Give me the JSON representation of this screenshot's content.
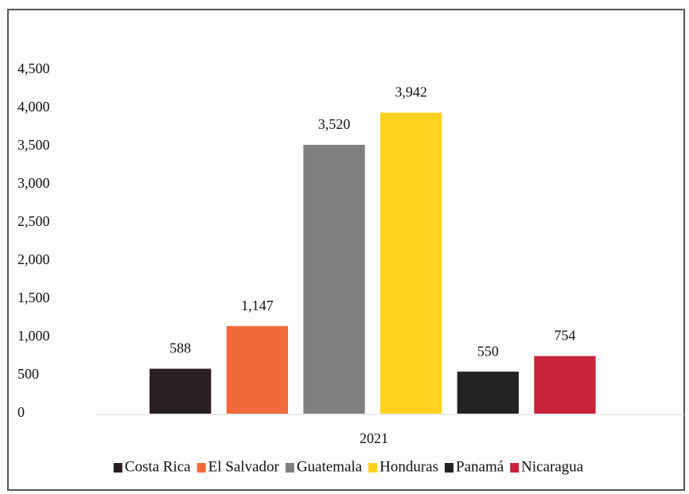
{
  "chart_data": {
    "type": "bar",
    "categories": [
      "2021"
    ],
    "series": [
      {
        "name": "Costa Rica",
        "color": "#2a1f22",
        "values": [
          588
        ]
      },
      {
        "name": "El Salvador",
        "color": "#f26a3b",
        "values": [
          1147
        ],
        "value_labels": [
          "1,147"
        ]
      },
      {
        "name": "Guatemala",
        "color": "#7f7f7f",
        "values": [
          3520
        ],
        "value_labels": [
          "3,520"
        ]
      },
      {
        "name": "Honduras",
        "color": "#ffd21f",
        "values": [
          3942
        ],
        "value_labels": [
          "3,942"
        ]
      },
      {
        "name": "Panamá",
        "color": "#222424",
        "values": [
          550
        ]
      },
      {
        "name": "Nicaragua",
        "color": "#c8233a",
        "values": [
          754
        ]
      }
    ],
    "ylim": [
      0,
      4500
    ],
    "yticks": [
      0,
      500,
      {
        "value": 1000,
        "label": "1,000"
      },
      {
        "value": 1500,
        "label": "1,500"
      },
      {
        "value": 2000,
        "label": "2,000"
      },
      {
        "value": 2500,
        "label": "2,500"
      },
      {
        "value": 3000,
        "label": "3,000"
      },
      {
        "value": 3500,
        "label": "3,500"
      },
      {
        "value": 4000,
        "label": "4,000"
      },
      {
        "value": 4500,
        "label": "4,500"
      }
    ],
    "grid": false,
    "legend": "bottom"
  }
}
